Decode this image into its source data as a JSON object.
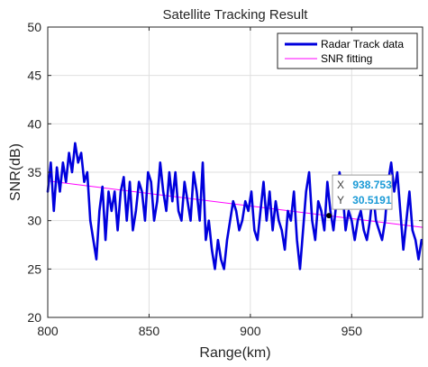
{
  "chart_data": {
    "type": "line",
    "title": "Satellite Tracking Result",
    "xlabel": "Range(km)",
    "ylabel": "SNR(dB)",
    "xlim": [
      800,
      985
    ],
    "ylim": [
      20,
      50
    ],
    "xticks": [
      800,
      850,
      900,
      950
    ],
    "yticks": [
      20,
      25,
      30,
      35,
      40,
      45,
      50
    ],
    "xtick_labels": [
      "800",
      "850",
      "900",
      "950"
    ],
    "ytick_labels": [
      "20",
      "25",
      "30",
      "35",
      "40",
      "45",
      "50"
    ],
    "grid": true,
    "legend": {
      "location": "top-right"
    },
    "series": [
      {
        "name": "Radar Track data",
        "kind": "line",
        "color": "#0000dd",
        "x": [
          800,
          801.5,
          803,
          804.5,
          806,
          807.5,
          809,
          810.5,
          812,
          813.5,
          815,
          816.5,
          818,
          819.5,
          821,
          822.5,
          824,
          825.5,
          827,
          828.5,
          830,
          831.5,
          833,
          834.5,
          836,
          837.5,
          839,
          840.5,
          842,
          843.5,
          845,
          846.5,
          848,
          849.5,
          851,
          852.5,
          854,
          855.5,
          857,
          858.5,
          860,
          861.5,
          863,
          864.5,
          866,
          867.5,
          869,
          870.5,
          872,
          873.5,
          875,
          876.5,
          878,
          879.5,
          881,
          882.5,
          884,
          885.5,
          887,
          888.5,
          890,
          891.5,
          893,
          894.5,
          896,
          897.5,
          899,
          900.5,
          902,
          903.5,
          905,
          906.5,
          908,
          909.5,
          911,
          912.5,
          914,
          915.5,
          917,
          918.5,
          920,
          921.5,
          923,
          924.5,
          926,
          927.5,
          929,
          930.5,
          932,
          933.5,
          935,
          936.5,
          938,
          939.5,
          941,
          942.5,
          944,
          945.5,
          947,
          948.5,
          950,
          951.5,
          953,
          954.5,
          956,
          957.5,
          959,
          960.5,
          962,
          963.5,
          965,
          966.5,
          968,
          969.5,
          971,
          972.5,
          974,
          975.5,
          977,
          978.5,
          980,
          981.5,
          983,
          984.5
        ],
        "y": [
          33,
          36,
          31,
          35.5,
          33,
          36,
          34,
          37,
          35,
          38,
          36,
          37,
          34,
          35,
          30,
          28,
          26,
          31,
          33.5,
          28,
          33,
          31,
          33,
          29,
          33,
          34.5,
          30,
          34,
          29,
          31,
          34,
          33,
          30,
          35,
          34,
          30,
          32,
          36,
          33,
          31,
          35,
          32,
          35,
          31,
          30,
          34,
          32,
          30,
          35,
          33,
          30,
          36,
          28,
          30,
          27,
          25,
          28,
          26,
          25,
          28,
          30,
          32,
          31,
          29,
          30,
          32,
          31,
          33,
          29,
          28,
          31,
          34,
          30,
          33,
          29,
          32,
          30,
          29,
          27,
          31,
          30,
          33,
          28,
          25,
          29,
          33,
          35,
          30,
          28,
          32,
          31,
          29,
          34,
          31,
          29,
          32,
          35,
          33,
          29,
          31,
          30,
          28,
          30,
          31,
          29,
          28,
          30,
          33,
          30,
          29,
          28,
          30,
          34,
          36,
          33,
          35,
          31,
          27,
          30,
          33,
          29,
          28,
          26,
          28
        ],
        "approximate": true
      },
      {
        "name": "SNR fitting",
        "kind": "fit",
        "color": "#ff00ff",
        "x": [
          800,
          985
        ],
        "y": [
          34.1,
          29.3
        ]
      }
    ],
    "datatip": {
      "x_label": "X",
      "x_value": "938.753",
      "y_label": "Y",
      "y_value": "30.5191",
      "x": 938.753,
      "y": 30.5191
    }
  }
}
